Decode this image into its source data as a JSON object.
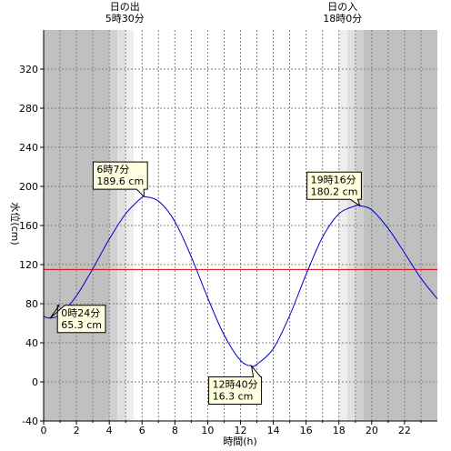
{
  "chart_data": {
    "type": "line",
    "xlabel": "時間(h)",
    "ylabel": "水位(cm)",
    "xlim": [
      0,
      24
    ],
    "ylim": [
      -40,
      360
    ],
    "x_ticks": [
      0,
      2,
      4,
      6,
      8,
      10,
      12,
      14,
      16,
      18,
      20,
      22
    ],
    "y_ticks": [
      -40,
      0,
      40,
      80,
      120,
      160,
      200,
      240,
      280,
      320
    ],
    "grid": true,
    "reference_line": {
      "value": 115,
      "color": "#e00000"
    },
    "series": [
      {
        "color": "#0000cc",
        "x": [
          0,
          0.4,
          1,
          2,
          3,
          4,
          5,
          6,
          6.12,
          7,
          8,
          9,
          10,
          11,
          12,
          12.67,
          13,
          14,
          15,
          16,
          17,
          18,
          19,
          19.27,
          20,
          21,
          22,
          23,
          24
        ],
        "y": [
          67,
          65.3,
          69,
          88,
          116,
          146,
          172,
          189,
          189.6,
          185,
          164,
          128,
          86,
          48,
          22,
          16.3,
          18,
          34,
          68,
          110,
          148,
          172,
          180,
          180.2,
          176,
          157,
          132,
          106,
          85
        ]
      }
    ],
    "daylight": {
      "sunrise": {
        "hour": 5.5,
        "label_line1": "日の出",
        "label_line2": "5時30分"
      },
      "sunset": {
        "hour": 18.0,
        "label_line1": "日の入",
        "label_line2": "18時0分"
      }
    },
    "annotations": [
      {
        "x": 0.4,
        "y": 65.3,
        "time": "0時24分",
        "value": "65.3 cm"
      },
      {
        "x": 6.12,
        "y": 189.6,
        "time": "6時7分",
        "value": "189.6 cm"
      },
      {
        "x": 12.67,
        "y": 16.3,
        "time": "12時40分",
        "value": "16.3 cm"
      },
      {
        "x": 19.27,
        "y": 180.2,
        "time": "19時16分",
        "value": "180.2 cm"
      }
    ],
    "colors": {
      "night": "#c0c0c0",
      "twilight_dark": "#d0d0d0",
      "twilight_mid": "#e0e0e0",
      "twilight_light": "#eeeeee",
      "day": "#ffffff",
      "callout_fill": "#ffffe0"
    }
  }
}
